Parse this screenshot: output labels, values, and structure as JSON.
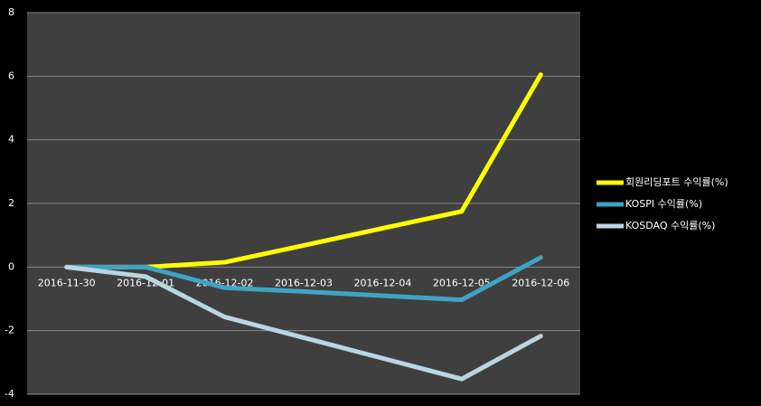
{
  "chart_data": {
    "type": "line",
    "categories": [
      "2016-11-30",
      "2016-12-01",
      "2016-12-02",
      "2016-12-03",
      "2016-12-04",
      "2016-12-05",
      "2016-12-06"
    ],
    "series": [
      {
        "name": "회원리딩포트 수익률(%)",
        "color": "#ffff00",
        "values": [
          0,
          0,
          0.15,
          0.68,
          1.22,
          1.75,
          6.05
        ]
      },
      {
        "name": "KOSPI 수익률(%)",
        "color": "#3fa3c4",
        "values": [
          0,
          0,
          -0.65,
          -0.77,
          -0.9,
          -1.03,
          0.3
        ]
      },
      {
        "name": "KOSDAQ 수익률(%)",
        "color": "#b9d6e2",
        "values": [
          0,
          -0.3,
          -1.57,
          -2.22,
          -2.87,
          -3.52,
          -2.17
        ]
      }
    ],
    "ylim": [
      -4,
      8
    ],
    "yticks": [
      -4,
      -2,
      0,
      2,
      4,
      6,
      8
    ],
    "grid": true,
    "legend": "right"
  }
}
